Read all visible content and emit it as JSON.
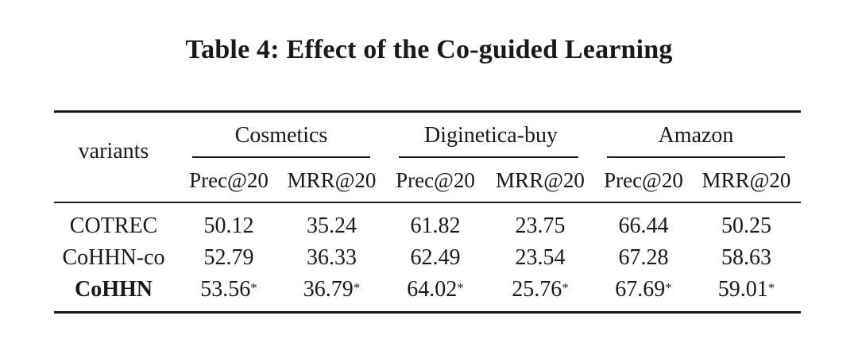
{
  "caption": "Table 4: Effect of the Co-guided Learning",
  "header": {
    "variants_label": "variants",
    "groups": [
      "Cosmetics",
      "Diginetica-buy",
      "Amazon"
    ],
    "metrics": [
      "Prec@20",
      "MRR@20",
      "Prec@20",
      "MRR@20",
      "Prec@20",
      "MRR@20"
    ]
  },
  "rows": [
    {
      "name": "COTREC",
      "bold": false,
      "values": [
        "50.12",
        "35.24",
        "61.82",
        "23.75",
        "66.44",
        "50.25"
      ],
      "stars": [
        false,
        false,
        false,
        false,
        false,
        false
      ]
    },
    {
      "name": "CoHHN-co",
      "bold": false,
      "values": [
        "52.79",
        "36.33",
        "62.49",
        "23.54",
        "67.28",
        "58.63"
      ],
      "stars": [
        false,
        false,
        false,
        false,
        false,
        false
      ]
    },
    {
      "name": "CoHHN",
      "bold": true,
      "values": [
        "53.56",
        "36.79",
        "64.02",
        "25.76",
        "67.69",
        "59.01"
      ],
      "stars": [
        true,
        true,
        true,
        true,
        true,
        true
      ]
    }
  ],
  "significance_marker": "*"
}
